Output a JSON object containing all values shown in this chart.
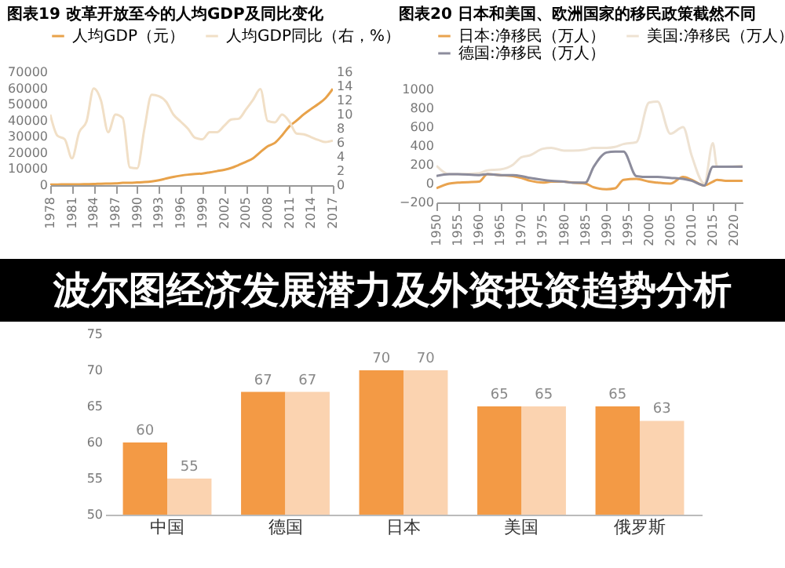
{
  "chart_data": [
    {
      "type": "line",
      "title": "图表19 改革开放至今的人均GDP及同比变化",
      "legend": "top",
      "x": [
        1978,
        1979,
        1980,
        1981,
        1982,
        1983,
        1984,
        1985,
        1986,
        1987,
        1988,
        1989,
        1990,
        1991,
        1992,
        1993,
        1994,
        1995,
        1996,
        1997,
        1998,
        1999,
        2000,
        2001,
        2002,
        2003,
        2004,
        2005,
        2006,
        2007,
        2008,
        2009,
        2010,
        2011,
        2012,
        2013,
        2014,
        2015,
        2016,
        2017
      ],
      "xlim": [
        1978,
        2017
      ],
      "xticks": [
        1978,
        1981,
        1984,
        1987,
        1990,
        1993,
        1996,
        1999,
        2002,
        2005,
        2008,
        2011,
        2014,
        2017
      ],
      "ylim": [
        0,
        70000
      ],
      "yticks": [
        0,
        10000,
        20000,
        30000,
        40000,
        50000,
        60000,
        70000
      ],
      "y2lim": [
        0,
        16
      ],
      "y2ticks": [
        0,
        2,
        4,
        6,
        8,
        10,
        12,
        14,
        16
      ],
      "series": [
        {
          "name": "人均GDP（元）",
          "color": "#e8a24a",
          "values": [
            400,
            400,
            500,
            500,
            500,
            600,
            700,
            900,
            1000,
            1100,
            1400,
            1500,
            1700,
            1900,
            2300,
            3000,
            4100,
            5100,
            5900,
            6500,
            6900,
            7200,
            7900,
            8700,
            9500,
            10700,
            12500,
            14400,
            16700,
            20500,
            24100,
            26200,
            30900,
            36400,
            40000,
            43900,
            47200,
            50300,
            54000,
            59700
          ]
        },
        {
          "name": "人均GDP同比（右，%）",
          "color": "#f1dfc6",
          "axis": "y2",
          "values": [
            10,
            7,
            6.5,
            3.8,
            7.5,
            9,
            13.7,
            12,
            7.5,
            10,
            9.5,
            2.5,
            2.4,
            8,
            12.8,
            12.6,
            11.8,
            10,
            9,
            8,
            6.7,
            6.5,
            7.5,
            7.5,
            8.4,
            9.3,
            9.4,
            10.7,
            12.1,
            13.6,
            9.1,
            8.9,
            10,
            9,
            7.3,
            7.2,
            6.8,
            6.4,
            6.1,
            6.3
          ]
        }
      ]
    },
    {
      "type": "line",
      "title": "图表20 日本和美国、欧洲国家的移民政策截然不同",
      "legend": "top",
      "x": [
        1950,
        1953,
        1955,
        1960,
        1962,
        1965,
        1968,
        1970,
        1972,
        1975,
        1977,
        1980,
        1982,
        1985,
        1987,
        1990,
        1992,
        1994,
        1997,
        2000,
        2002,
        2005,
        2008,
        2010,
        2013,
        2015,
        2016,
        2018,
        2022
      ],
      "xlim": [
        1950,
        2022
      ],
      "xticks": [
        1950,
        1955,
        1960,
        1965,
        1970,
        1975,
        1980,
        1985,
        1990,
        1995,
        2000,
        2005,
        2010,
        2015,
        2020
      ],
      "ylim": [
        -200,
        1000
      ],
      "yticks": [
        -200,
        0,
        200,
        400,
        600,
        800,
        1000
      ],
      "series": [
        {
          "name": "日本:净移民（万人）",
          "color": "#e9a34f",
          "values": [
            -50,
            0,
            10,
            20,
            100,
            90,
            80,
            60,
            30,
            10,
            20,
            20,
            10,
            0,
            -40,
            -60,
            -50,
            40,
            50,
            20,
            10,
            0,
            70,
            40,
            -20,
            20,
            40,
            30,
            30
          ]
        },
        {
          "name": "美国:净移民（万人）",
          "color": "#eee2d2",
          "values": [
            190,
            100,
            100,
            110,
            140,
            150,
            200,
            280,
            300,
            370,
            380,
            350,
            350,
            360,
            380,
            380,
            390,
            420,
            440,
            860,
            870,
            530,
            600,
            300,
            0,
            430,
            180,
            180,
            190
          ]
        },
        {
          "name": "德国:净移民（万人）",
          "color": "#8c8c9c",
          "values": [
            80,
            100,
            100,
            90,
            100,
            90,
            90,
            80,
            60,
            40,
            30,
            20,
            10,
            10,
            180,
            330,
            340,
            340,
            80,
            70,
            70,
            60,
            50,
            30,
            -20,
            180,
            180,
            180,
            180
          ]
        }
      ]
    },
    {
      "type": "bar",
      "title": "波尔图经济发展潜力及外资投资趋势分析",
      "data_labels": true,
      "categories": [
        "中国",
        "德国",
        "日本",
        "美国",
        "俄罗斯"
      ],
      "ylim": [
        50,
        75
      ],
      "yticks": [
        50,
        55,
        60,
        65,
        70,
        75
      ],
      "series": [
        {
          "color": "#f39a45",
          "values": [
            60,
            67,
            70,
            65,
            65
          ]
        },
        {
          "color": "#fbd3b0",
          "values": [
            55,
            67,
            70,
            65,
            63
          ]
        }
      ]
    }
  ]
}
